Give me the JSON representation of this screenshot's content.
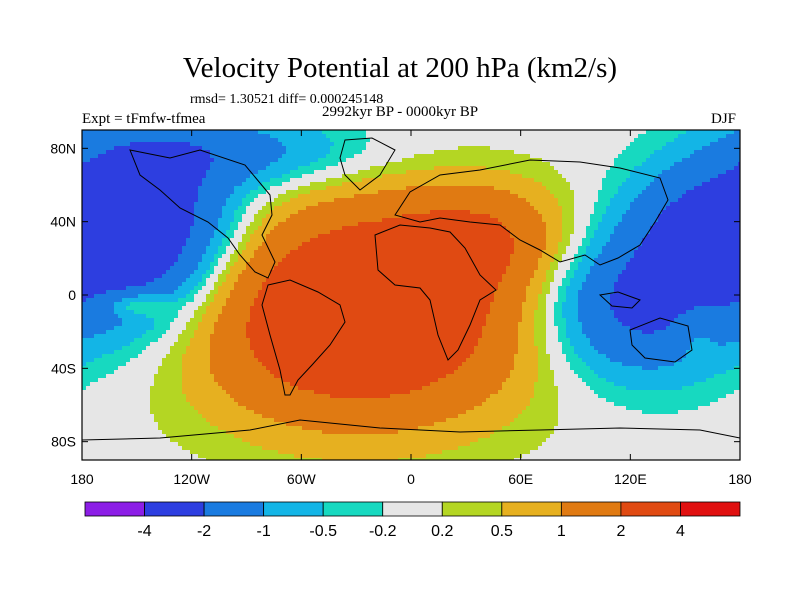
{
  "header": {
    "title": "Velocity Potential at 200 hPa (km2/s)",
    "stats": "rmsd= 1.30521 diff= 0.000245148",
    "experiment": "Expt = tFmfw-tfmea",
    "period": "2992kyr BP - 0000kyr BP",
    "season": "DJF"
  },
  "chart_data": {
    "type": "heatmap",
    "title": "Velocity Potential at 200 hPa (km2/s)",
    "subtitle": "2992kyr BP - 0000kyr BP",
    "xlabel": "",
    "ylabel": "",
    "x_ticks": [
      {
        "value": -180,
        "label": "180"
      },
      {
        "value": -120,
        "label": "120W"
      },
      {
        "value": -60,
        "label": "60W"
      },
      {
        "value": 0,
        "label": "0"
      },
      {
        "value": 60,
        "label": "60E"
      },
      {
        "value": 120,
        "label": "120E"
      },
      {
        "value": 180,
        "label": "180"
      }
    ],
    "y_ticks": [
      {
        "value": 80,
        "label": "80N"
      },
      {
        "value": 40,
        "label": "40N"
      },
      {
        "value": 0,
        "label": "0"
      },
      {
        "value": -40,
        "label": "40S"
      },
      {
        "value": -80,
        "label": "80S"
      }
    ],
    "xlim": [
      -180,
      180
    ],
    "ylim": [
      -90,
      90
    ],
    "contour_levels": [
      -4,
      -2,
      -1,
      -0.5,
      -0.2,
      0.2,
      0.5,
      1,
      2,
      4
    ],
    "level_labels": [
      "-4",
      "-2",
      "-1",
      "-0.5",
      "-0.2",
      "0.2",
      "0.5",
      "1",
      "2",
      "4"
    ],
    "bin_colors": [
      "#8c1ee6",
      "#2d3ee0",
      "#1a7be0",
      "#13b5e6",
      "#17d9c0",
      "#e6e6e6",
      "#b4d623",
      "#e6b020",
      "#e07a12",
      "#e04a12",
      "#e01010"
    ],
    "centers": [
      {
        "lon": -28,
        "lat": -10,
        "amp": 3.9,
        "slon": 62,
        "slat": 40
      },
      {
        "lon": 40,
        "lat": 32,
        "amp": 1.4,
        "slon": 34,
        "slat": 20
      },
      {
        "lon": -150,
        "lat": -5,
        "amp": 1.2,
        "slon": 12,
        "slat": 5
      },
      {
        "lon": -150,
        "lat": 35,
        "amp": -3.6,
        "slon": 38,
        "slat": 36
      },
      {
        "lon": 122,
        "lat": -5,
        "amp": -2.4,
        "slon": 36,
        "slat": 28
      },
      {
        "lon": 150,
        "lat": 40,
        "amp": -1.2,
        "slon": 26,
        "slat": 22
      },
      {
        "lon": -90,
        "lat": 78,
        "amp": -1.2,
        "slon": 50,
        "slat": 14
      },
      {
        "lon": 155,
        "lat": -20,
        "amp": 0.6,
        "slon": 8,
        "slat": 10
      }
    ]
  },
  "colors": {
    "land_outline": "#000000",
    "frame": "#000000"
  }
}
